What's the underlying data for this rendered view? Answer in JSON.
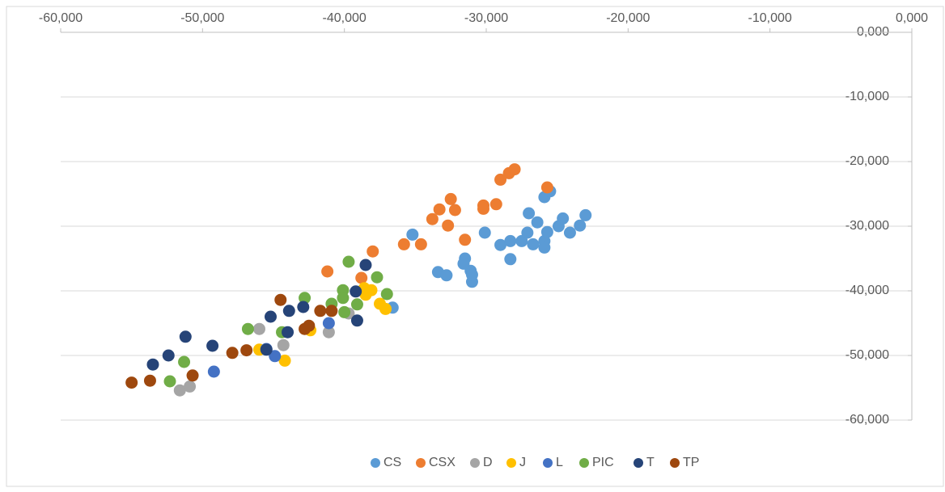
{
  "chart_data": {
    "type": "scatter",
    "xlim": [
      -60,
      0
    ],
    "ylim": [
      -60,
      0
    ],
    "xticks": [
      {
        "value": -60,
        "label": "-60,000"
      },
      {
        "value": -50,
        "label": "-50,000"
      },
      {
        "value": -40,
        "label": "-40,000"
      },
      {
        "value": -30,
        "label": "-30,000"
      },
      {
        "value": -20,
        "label": "-20,000"
      },
      {
        "value": -10,
        "label": "-10,000"
      },
      {
        "value": 0,
        "label": "0,000"
      }
    ],
    "yticks": [
      {
        "value": 0,
        "label": "0,000"
      },
      {
        "value": -10,
        "label": "-10,000"
      },
      {
        "value": -20,
        "label": "-20,000"
      },
      {
        "value": -30,
        "label": "-30,000"
      },
      {
        "value": -40,
        "label": "-40,000"
      },
      {
        "value": -50,
        "label": "-50,000"
      },
      {
        "value": -60,
        "label": "-60,000"
      }
    ],
    "grid": true,
    "legend": "bottom",
    "series": [
      {
        "name": "CS",
        "color": "#5b9bd5",
        "x": [
          -35.2,
          -33.4,
          -32.8,
          -31.5,
          -31.1,
          -31.6,
          -31.0,
          -31.0,
          -30.1,
          -29.0,
          -28.3,
          -28.3,
          -27.5,
          -27.0,
          -27.1,
          -26.7,
          -26.4,
          -25.9,
          -25.9,
          -25.9,
          -25.5,
          -25.7,
          -24.9,
          -24.6,
          -24.1,
          -23.4,
          -23.0,
          -36.6
        ],
        "values": [
          -31.3,
          -37.1,
          -37.6,
          -35.0,
          -36.9,
          -35.8,
          -38.6,
          -37.5,
          -31.0,
          -32.9,
          -35.1,
          -32.3,
          -32.3,
          -28.0,
          -31.0,
          -32.8,
          -29.4,
          -32.3,
          -25.5,
          -33.3,
          -24.6,
          -30.9,
          -30.0,
          -28.8,
          -31.0,
          -29.9,
          -28.3,
          -42.6
        ]
      },
      {
        "name": "CSX",
        "color": "#ed7d31",
        "x": [
          -41.2,
          -38.0,
          -38.8,
          -35.8,
          -34.6,
          -33.8,
          -33.3,
          -32.7,
          -32.5,
          -32.2,
          -31.5,
          -30.2,
          -30.2,
          -29.3,
          -29.0,
          -28.4,
          -28.0,
          -25.7
        ],
        "values": [
          -37.0,
          -33.9,
          -38.0,
          -32.8,
          -32.8,
          -28.9,
          -27.4,
          -29.9,
          -25.8,
          -27.5,
          -32.1,
          -26.8,
          -27.3,
          -26.6,
          -22.8,
          -21.8,
          -21.2,
          -24.0
        ]
      },
      {
        "name": "D",
        "color": "#a5a5a5",
        "x": [
          -51.6,
          -50.9,
          -46.0,
          -44.3,
          -41.1,
          -39.7
        ],
        "values": [
          -55.4,
          -54.8,
          -45.9,
          -48.4,
          -46.4,
          -43.5
        ]
      },
      {
        "name": "J",
        "color": "#ffc000",
        "x": [
          -46.0,
          -44.2,
          -42.4,
          -38.6,
          -38.1,
          -38.5,
          -37.5,
          -37.1
        ],
        "values": [
          -49.1,
          -50.8,
          -46.1,
          -39.6,
          -39.9,
          -40.6,
          -42.0,
          -42.8
        ]
      },
      {
        "name": "L",
        "color": "#4472c4",
        "x": [
          -49.2,
          -45.5,
          -44.9,
          -41.1
        ],
        "values": [
          -52.5,
          -49.0,
          -50.1,
          -45.0
        ]
      },
      {
        "name": "PIC",
        "color": "#70ad47",
        "x": [
          -52.3,
          -51.3,
          -46.8,
          -44.4,
          -42.8,
          -40.9,
          -40.1,
          -40.0,
          -39.7,
          -39.1,
          -37.7,
          -37.0,
          -40.1
        ],
        "values": [
          -54.0,
          -51.0,
          -45.9,
          -46.4,
          -41.1,
          -42.0,
          -39.9,
          -43.3,
          -35.5,
          -42.1,
          -37.9,
          -40.5,
          -41.1
        ]
      },
      {
        "name": "T",
        "color": "#264478",
        "x": [
          -53.5,
          -52.4,
          -51.2,
          -49.3,
          -45.2,
          -43.9,
          -44.0,
          -42.9,
          -39.2,
          -38.5,
          -39.1,
          -45.5
        ],
        "values": [
          -51.4,
          -50.0,
          -47.1,
          -48.5,
          -44.0,
          -43.1,
          -46.4,
          -42.5,
          -40.1,
          -36.0,
          -44.6,
          -49.1
        ]
      },
      {
        "name": "TP",
        "color": "#9e480e",
        "x": [
          -55.0,
          -53.7,
          -50.7,
          -47.9,
          -46.9,
          -44.5,
          -42.8,
          -42.5,
          -41.7,
          -40.9
        ],
        "values": [
          -54.2,
          -53.9,
          -53.1,
          -49.6,
          -49.2,
          -41.4,
          -45.9,
          -45.4,
          -43.1,
          -43.1
        ]
      }
    ]
  }
}
